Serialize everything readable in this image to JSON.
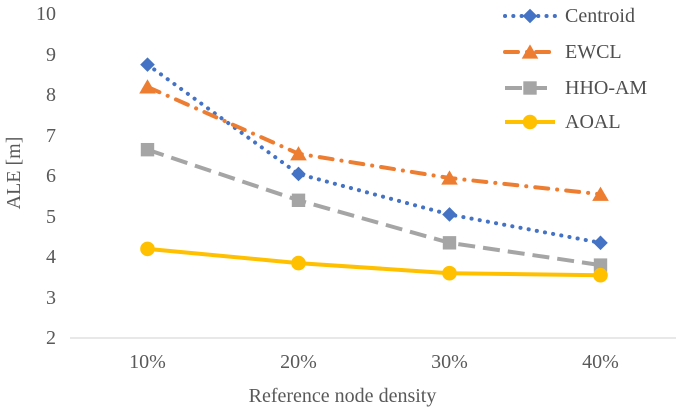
{
  "chart_data": {
    "type": "line",
    "xlabel": "Reference node density",
    "ylabel": "ALE [m]",
    "categories": [
      "10%",
      "20%",
      "30%",
      "40%"
    ],
    "series": [
      {
        "name": "Centroid",
        "values": [
          8.75,
          6.05,
          5.05,
          4.35
        ],
        "color": "#4472C4",
        "marker": "diamond",
        "line": "dotted"
      },
      {
        "name": "EWCL",
        "values": [
          8.2,
          6.55,
          5.95,
          5.55
        ],
        "color": "#ED7D31",
        "marker": "triangle",
        "line": "dashdot"
      },
      {
        "name": "HHO-AM",
        "values": [
          6.65,
          5.4,
          4.35,
          3.8
        ],
        "color": "#A5A5A5",
        "marker": "square",
        "line": "dash"
      },
      {
        "name": "AOAL",
        "values": [
          4.2,
          3.85,
          3.6,
          3.55
        ],
        "color": "#FFC000",
        "marker": "circle",
        "line": "solid"
      }
    ],
    "ylim": [
      2,
      10
    ],
    "yticks": [
      "10",
      "9",
      "8",
      "7",
      "6",
      "5",
      "4",
      "3",
      "2"
    ],
    "grid": "off",
    "legend_position": "top-right",
    "colors": {
      "axis_line": "#D9D9D9",
      "tick_text": "#595959",
      "legend_text": "#4f4f4f",
      "background": "#ffffff"
    }
  }
}
